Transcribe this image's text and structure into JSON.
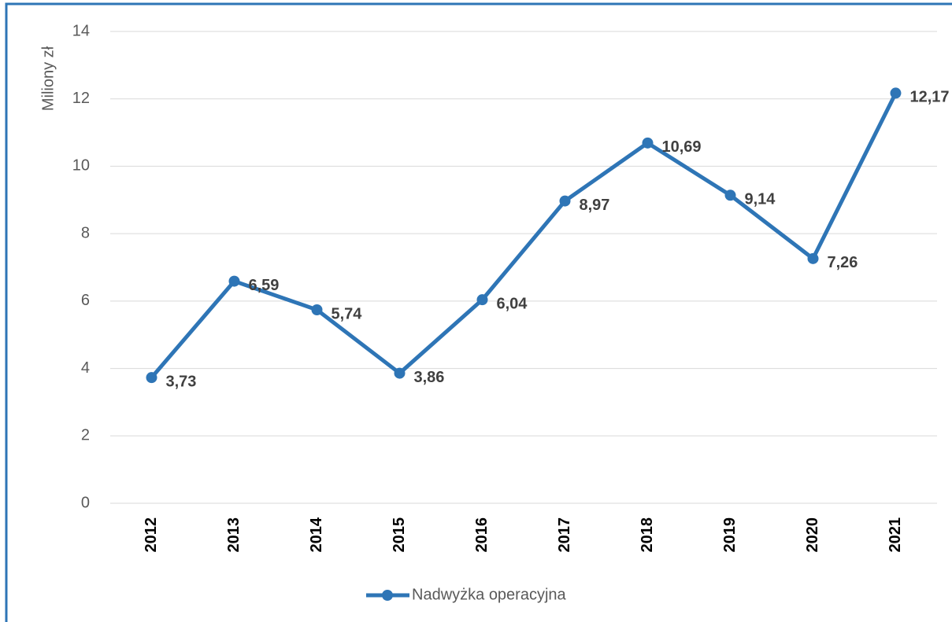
{
  "chart_data": {
    "type": "line",
    "y_label": "Miliony zł",
    "categories": [
      "2012",
      "2013",
      "2014",
      "2015",
      "2016",
      "2017",
      "2018",
      "2019",
      "2020",
      "2021"
    ],
    "series": [
      {
        "name": "Nadwyżka operacyjna",
        "color": "#2e75b6",
        "values": [
          3.73,
          6.59,
          5.74,
          3.86,
          6.04,
          8.97,
          10.69,
          9.14,
          7.26,
          12.17
        ],
        "value_labels": [
          "3,73",
          "6,59",
          "5,74",
          "3,86",
          "6,04",
          "8,97",
          "10,69",
          "9,14",
          "7,26",
          "12,17"
        ]
      }
    ],
    "ylim": [
      0,
      14
    ],
    "yticks": [
      0,
      2,
      4,
      6,
      8,
      10,
      12,
      14
    ],
    "grid": true,
    "legend": "bottom"
  }
}
